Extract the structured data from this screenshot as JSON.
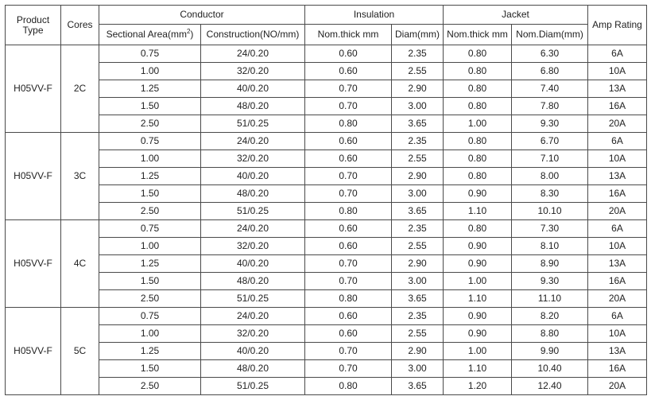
{
  "header": {
    "product_type": "Product Type",
    "cores": "Cores",
    "conductor": "Conductor",
    "insulation": "Insulation",
    "jacket": "Jacket",
    "amp_rating": "Amp Rating",
    "sectional_area": "Sectional Area(mm",
    "sectional_area_sup": "2",
    "sectional_area_close": ")",
    "construction": "Construction(NO/mm)",
    "ins_thick": "Nom.thick mm",
    "ins_diam": "Diam(mm)",
    "jacket_thick": "Nom.thick mm",
    "jacket_diam": "Nom.Diam(mm)"
  },
  "groups": [
    {
      "product": "H05VV-F",
      "cores": "2C",
      "rows": [
        [
          "0.75",
          "24/0.20",
          "0.60",
          "2.35",
          "0.80",
          "6.30",
          "6A"
        ],
        [
          "1.00",
          "32/0.20",
          "0.60",
          "2.55",
          "0.80",
          "6.80",
          "10A"
        ],
        [
          "1.25",
          "40/0.20",
          "0.70",
          "2.90",
          "0.80",
          "7.40",
          "13A"
        ],
        [
          "1.50",
          "48/0.20",
          "0.70",
          "3.00",
          "0.80",
          "7.80",
          "16A"
        ],
        [
          "2.50",
          "51/0.25",
          "0.80",
          "3.65",
          "1.00",
          "9.30",
          "20A"
        ]
      ]
    },
    {
      "product": "H05VV-F",
      "cores": "3C",
      "rows": [
        [
          "0.75",
          "24/0.20",
          "0.60",
          "2.35",
          "0.80",
          "6.70",
          "6A"
        ],
        [
          "1.00",
          "32/0.20",
          "0.60",
          "2.55",
          "0.80",
          "7.10",
          "10A"
        ],
        [
          "1.25",
          "40/0.20",
          "0.70",
          "2.90",
          "0.80",
          "8.00",
          "13A"
        ],
        [
          "1.50",
          "48/0.20",
          "0.70",
          "3.00",
          "0.90",
          "8.30",
          "16A"
        ],
        [
          "2.50",
          "51/0.25",
          "0.80",
          "3.65",
          "1.10",
          "10.10",
          "20A"
        ]
      ]
    },
    {
      "product": "H05VV-F",
      "cores": "4C",
      "rows": [
        [
          "0.75",
          "24/0.20",
          "0.60",
          "2.35",
          "0.80",
          "7.30",
          "6A"
        ],
        [
          "1.00",
          "32/0.20",
          "0.60",
          "2.55",
          "0.90",
          "8.10",
          "10A"
        ],
        [
          "1.25",
          "40/0.20",
          "0.70",
          "2.90",
          "0.90",
          "8.90",
          "13A"
        ],
        [
          "1.50",
          "48/0.20",
          "0.70",
          "3.00",
          "1.00",
          "9.30",
          "16A"
        ],
        [
          "2.50",
          "51/0.25",
          "0.80",
          "3.65",
          "1.10",
          "11.10",
          "20A"
        ]
      ]
    },
    {
      "product": "H05VV-F",
      "cores": "5C",
      "rows": [
        [
          "0.75",
          "24/0.20",
          "0.60",
          "2.35",
          "0.90",
          "8.20",
          "6A"
        ],
        [
          "1.00",
          "32/0.20",
          "0.60",
          "2.55",
          "0.90",
          "8.80",
          "10A"
        ],
        [
          "1.25",
          "40/0.20",
          "0.70",
          "2.90",
          "1.00",
          "9.90",
          "13A"
        ],
        [
          "1.50",
          "48/0.20",
          "0.70",
          "3.00",
          "1.10",
          "10.40",
          "16A"
        ],
        [
          "2.50",
          "51/0.25",
          "0.80",
          "3.65",
          "1.20",
          "12.40",
          "20A"
        ]
      ]
    }
  ]
}
